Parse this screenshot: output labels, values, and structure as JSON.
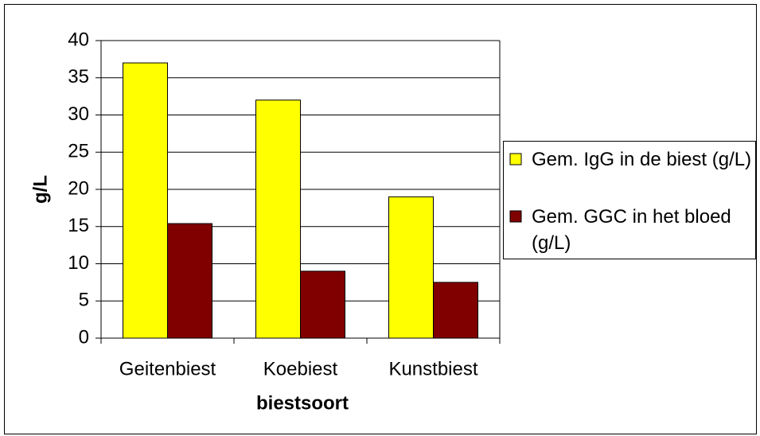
{
  "chart_data": {
    "type": "bar",
    "categories": [
      "Geitenbiest",
      "Koebiest",
      "Kunstbiest"
    ],
    "series": [
      {
        "name": "Gem. IgG in de biest (g/L)",
        "color": "#ffff00",
        "values": [
          37,
          32,
          19
        ]
      },
      {
        "name": "Gem. GGC in het bloed (g/L)",
        "color": "#800000",
        "values": [
          15.4,
          9,
          7.5
        ]
      }
    ],
    "x_label": "biestsoort",
    "y_label": "g/L",
    "ylim": [
      0,
      40
    ],
    "yticks": [
      0,
      5,
      10,
      15,
      20,
      25,
      30,
      35,
      40
    ],
    "grid": true,
    "legend": "right"
  }
}
